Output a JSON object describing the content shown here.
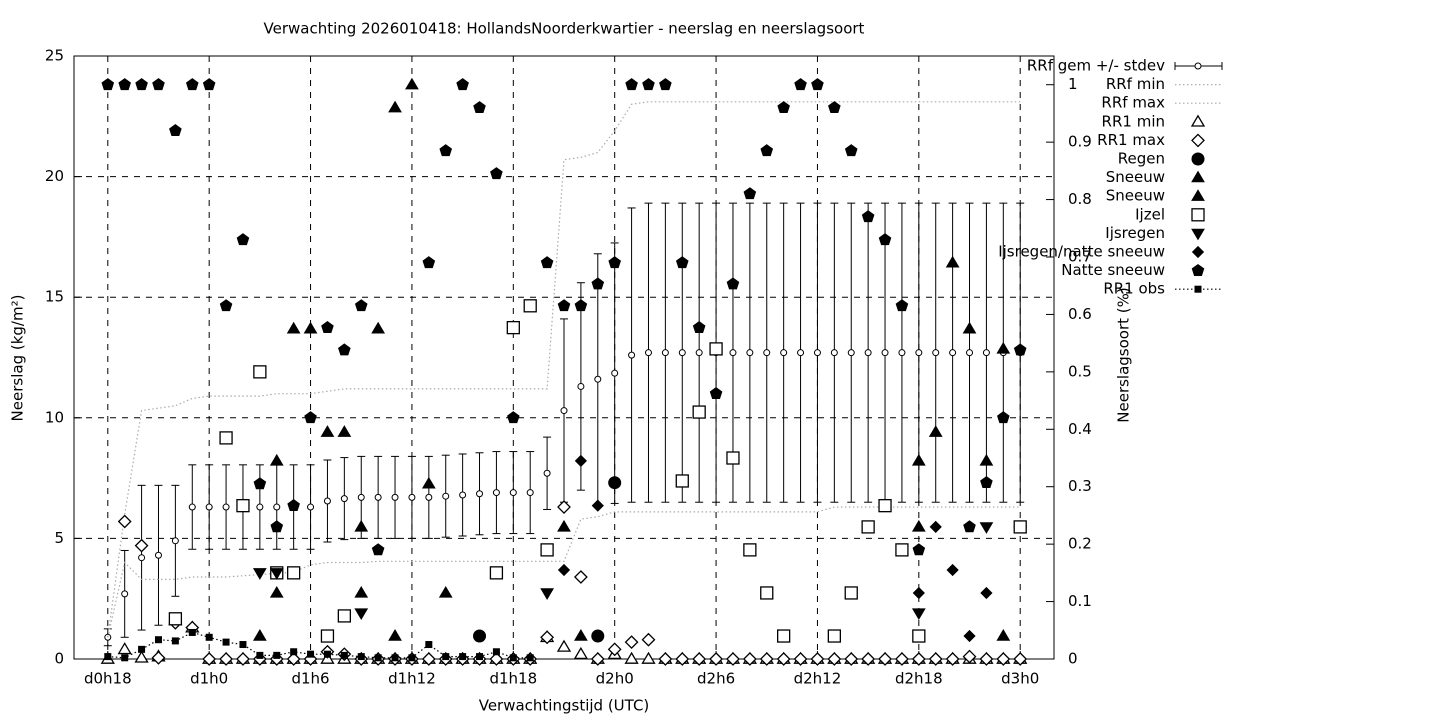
{
  "chart_data": {
    "type": "line",
    "title": "Verwachting 2026010418: HollandsNoorderkwartier - neerslag en neerslagsoort",
    "x_label": "Verwachtingstijd (UTC)",
    "y_label": "Neerslag (kg/m²)",
    "y2_label": "Neerslagsoort (%)",
    "xlim": [
      -2,
      56
    ],
    "xticks": [
      {
        "value": 0,
        "label": "d0h18"
      },
      {
        "value": 6,
        "label": "d1h0"
      },
      {
        "value": 12,
        "label": "d1h6"
      },
      {
        "value": 18,
        "label": "d1h12"
      },
      {
        "value": 24,
        "label": "d1h18"
      },
      {
        "value": 30,
        "label": "d2h0"
      },
      {
        "value": 36,
        "label": "d2h6"
      },
      {
        "value": 42,
        "label": "d2h12"
      },
      {
        "value": 48,
        "label": "d2h18"
      },
      {
        "value": 54,
        "label": "d3h0"
      }
    ],
    "ylim": [
      0,
      25
    ],
    "yticks": [
      0,
      5,
      10,
      15,
      20,
      25
    ],
    "y2lim": [
      0,
      1.05
    ],
    "y2ticks": [
      0,
      0.1,
      0.2,
      0.3,
      0.4,
      0.5,
      0.6,
      0.7,
      0.8,
      0.9,
      1
    ],
    "grid": true,
    "x": [
      0,
      1,
      2,
      3,
      4,
      5,
      6,
      7,
      8,
      9,
      10,
      11,
      12,
      13,
      14,
      15,
      16,
      17,
      18,
      19,
      20,
      21,
      22,
      23,
      24,
      25,
      26,
      27,
      28,
      29,
      30,
      31,
      32,
      33,
      34,
      35,
      36,
      37,
      38,
      39,
      40,
      41,
      42,
      43,
      44,
      45,
      46,
      47,
      48,
      49,
      50,
      51,
      52,
      53,
      54
    ],
    "series": [
      {
        "name": "RRf gem +/- stdev",
        "marker": "errorbar",
        "color": "#000000",
        "values": [
          0.9,
          2.7,
          4.2,
          4.3,
          4.9,
          6.3,
          6.3,
          6.3,
          6.3,
          6.3,
          6.3,
          6.3,
          6.3,
          6.55,
          6.65,
          6.7,
          6.7,
          6.7,
          6.7,
          6.7,
          6.75,
          6.8,
          6.85,
          6.9,
          6.9,
          6.9,
          7.7,
          10.3,
          11.3,
          11.6,
          11.85,
          12.6,
          12.7,
          12.7,
          12.7,
          12.7,
          12.7,
          12.7,
          12.7,
          12.7,
          12.7,
          12.7,
          12.7,
          12.7,
          12.7,
          12.7,
          12.7,
          12.7,
          12.7,
          12.7,
          12.7,
          12.7,
          12.7,
          12.7,
          12.7
        ],
        "errors": [
          0.35,
          1.8,
          3.0,
          2.9,
          2.3,
          1.75,
          1.75,
          1.75,
          1.75,
          1.75,
          1.75,
          1.75,
          1.75,
          1.7,
          1.7,
          1.7,
          1.7,
          1.7,
          1.7,
          1.7,
          1.7,
          1.7,
          1.7,
          1.7,
          1.7,
          1.7,
          1.5,
          3.8,
          4.3,
          5.2,
          5.4,
          6.1,
          6.2,
          6.2,
          6.2,
          6.2,
          6.2,
          6.2,
          6.2,
          6.2,
          6.2,
          6.2,
          6.2,
          6.2,
          6.2,
          6.2,
          6.2,
          6.2,
          6.2,
          6.2,
          6.2,
          6.2,
          6.2,
          6.2,
          6.2
        ]
      },
      {
        "name": "RRf min",
        "marker": "dotted",
        "color": "#aaaaaa",
        "values": [
          0.9,
          4.0,
          3.3,
          3.3,
          3.3,
          3.4,
          3.4,
          3.4,
          3.45,
          3.5,
          3.55,
          3.6,
          3.9,
          4.0,
          4.0,
          4.0,
          4.05,
          4.05,
          4.05,
          4.05,
          4.05,
          4.05,
          4.05,
          4.05,
          4.05,
          4.05,
          4.05,
          4.05,
          5.8,
          5.9,
          6.1,
          6.1,
          6.1,
          6.1,
          6.1,
          6.1,
          6.1,
          6.1,
          6.1,
          6.1,
          6.1,
          6.1,
          6.1,
          6.3,
          6.3,
          6.3,
          6.3,
          6.3,
          6.3,
          6.3,
          6.3,
          6.3,
          6.3,
          6.3,
          6.3
        ]
      },
      {
        "name": "RRf max",
        "marker": "dotted",
        "color": "#aaaaaa",
        "values": [
          0.9,
          6.0,
          10.3,
          10.4,
          10.5,
          10.8,
          10.9,
          10.9,
          10.9,
          10.9,
          11.0,
          11.0,
          11.0,
          11.1,
          11.2,
          11.2,
          11.2,
          11.2,
          11.2,
          11.2,
          11.2,
          11.2,
          11.2,
          11.2,
          11.2,
          11.2,
          11.2,
          20.7,
          20.8,
          21.0,
          21.9,
          23.0,
          23.1,
          23.1,
          23.1,
          23.1,
          23.1,
          23.1,
          23.1,
          23.1,
          23.1,
          23.1,
          23.1,
          23.1,
          23.1,
          23.1,
          23.1,
          23.1,
          23.1,
          23.1,
          23.1,
          23.1,
          23.1,
          23.1,
          23.1
        ]
      },
      {
        "name": "RR1 min",
        "marker": "triangle-open",
        "color": "#000000",
        "values": [
          0,
          0.4,
          0.05,
          0.1,
          1.6,
          1.3,
          0,
          0,
          0,
          0,
          0,
          0,
          0,
          0,
          0,
          0,
          0,
          0,
          0,
          0,
          0,
          0,
          0,
          0,
          0,
          0,
          0.9,
          0.5,
          0.2,
          0,
          0.2,
          0,
          0,
          0,
          0,
          0,
          0,
          0,
          0,
          0,
          0,
          0,
          0,
          0,
          0,
          0,
          0,
          0,
          0,
          0,
          0,
          0,
          0,
          0,
          0
        ]
      },
      {
        "name": "RR1 max",
        "marker": "diamond-open",
        "color": "#000000",
        "values": [
          null,
          5.7,
          4.7,
          0.05,
          1.5,
          1.3,
          0,
          0,
          0,
          0,
          0,
          0,
          0,
          0.3,
          0.2,
          0,
          0,
          0,
          0,
          0,
          0,
          0,
          0,
          0,
          0,
          0,
          0.9,
          6.3,
          3.4,
          0,
          0.4,
          0.7,
          0.8,
          0,
          0,
          0,
          0,
          0,
          0,
          0,
          0,
          0,
          0,
          0,
          0,
          0,
          0,
          0,
          0,
          0,
          0,
          0.1,
          0,
          0,
          0
        ]
      },
      {
        "name": "Regen",
        "marker": "circle",
        "color": "#000000",
        "axis": "y2",
        "x": [
          22,
          29,
          30,
          54
        ],
        "values": [
          0.04,
          0.04,
          0.307,
          0.23
        ]
      },
      {
        "name": "Sneeuw",
        "marker": "triangle",
        "color": "#000000",
        "axis": "y2",
        "x": [
          9,
          10,
          11,
          12,
          13,
          14,
          15,
          16,
          17,
          18,
          19,
          20,
          27,
          28,
          48,
          49,
          50,
          51,
          52,
          53
        ],
        "values": [
          0.04,
          0.345,
          0.575,
          0.575,
          0.395,
          0.395,
          0.23,
          0.575,
          0.96,
          1,
          0.305,
          0.115,
          0.23,
          0.04,
          0.345,
          0.395,
          0.69,
          0.575,
          0.345,
          0.54
        ]
      },
      {
        "name": "Sneeuw",
        "marker": "triangle",
        "color": "#000000",
        "axis": "y2",
        "x": [
          10,
          15,
          17,
          48,
          53
        ],
        "values": [
          0.115,
          0.115,
          0.04,
          0.23,
          0.04
        ]
      },
      {
        "name": "Ijzel",
        "marker": "square-open",
        "color": "#000000",
        "axis": "y2",
        "x": [
          4,
          7,
          8,
          9,
          10,
          11,
          13,
          14,
          23,
          24,
          25,
          26,
          34,
          35,
          36,
          37,
          38,
          39,
          40,
          43,
          44,
          45,
          46,
          47,
          48,
          54
        ],
        "values": [
          0.07,
          0.385,
          0.267,
          0.5,
          0.15,
          0.15,
          0.04,
          0.075,
          0.15,
          0.577,
          0.615,
          0.19,
          0.31,
          0.43,
          0.54,
          0.35,
          0.19,
          0.115,
          0.04,
          0.04,
          0.115,
          0.23,
          0.267,
          0.19,
          0.04,
          0.23
        ]
      },
      {
        "name": "Ijsregen",
        "marker": "triangle-down",
        "color": "#000000",
        "axis": "y2",
        "x": [
          9,
          10,
          15,
          26,
          48,
          52
        ],
        "values": [
          0.15,
          0.15,
          0.08,
          0.115,
          0.08,
          0.23
        ]
      },
      {
        "name": "Ijsregen/natte sneeuw",
        "marker": "diamond",
        "color": "#000000",
        "axis": "y2",
        "x": [
          27,
          28,
          29,
          48,
          49,
          50,
          51,
          52
        ],
        "values": [
          0.155,
          0.345,
          0.267,
          0.115,
          0.23,
          0.155,
          0.04,
          0.115
        ]
      },
      {
        "name": "Natte sneeuw",
        "marker": "pentagon",
        "color": "#000000",
        "axis": "y2",
        "x": [
          0,
          1,
          2,
          3,
          4,
          5,
          6,
          7,
          8,
          9,
          10,
          11,
          12,
          13,
          14,
          15,
          16,
          19,
          20,
          21,
          22,
          23,
          24,
          26,
          27,
          28,
          29,
          30,
          31,
          32,
          33,
          34,
          35,
          36,
          37,
          38,
          39,
          40,
          41,
          42,
          43,
          44,
          45,
          46,
          47,
          48,
          51,
          52,
          53,
          54
        ],
        "values": [
          1,
          1,
          1,
          1,
          0.92,
          1,
          1,
          0.615,
          0.73,
          0.305,
          0.23,
          0.267,
          0.42,
          0.577,
          0.538,
          0.615,
          0.19,
          0.69,
          0.885,
          1,
          0.96,
          0.845,
          0.42,
          0.69,
          0.615,
          0.615,
          0.653,
          0.69,
          1,
          1,
          1,
          0.69,
          0.577,
          0.462,
          0.653,
          0.81,
          0.885,
          0.96,
          1,
          1,
          0.96,
          0.885,
          0.77,
          0.73,
          0.615,
          0.19,
          0.23,
          0.307,
          0.42,
          0.538
        ]
      },
      {
        "name": "RR1 obs",
        "marker": "square-small",
        "color": "#000000",
        "values": [
          0.1,
          0.05,
          0.4,
          0.8,
          0.75,
          1.1,
          0.9,
          0.7,
          0.6,
          0.15,
          0.15,
          0.3,
          0.2,
          0.2,
          0.15,
          0.1,
          0.05,
          0.05,
          0.05,
          0.6,
          0.1,
          0.1,
          0.1,
          0.3,
          0.05,
          0.05,
          null,
          null,
          null,
          null,
          null,
          null,
          null,
          null,
          null,
          null,
          null,
          null,
          null,
          null,
          null,
          null,
          null,
          null,
          null,
          null,
          null,
          null,
          null,
          null,
          null,
          null,
          null,
          null,
          null
        ]
      }
    ]
  }
}
